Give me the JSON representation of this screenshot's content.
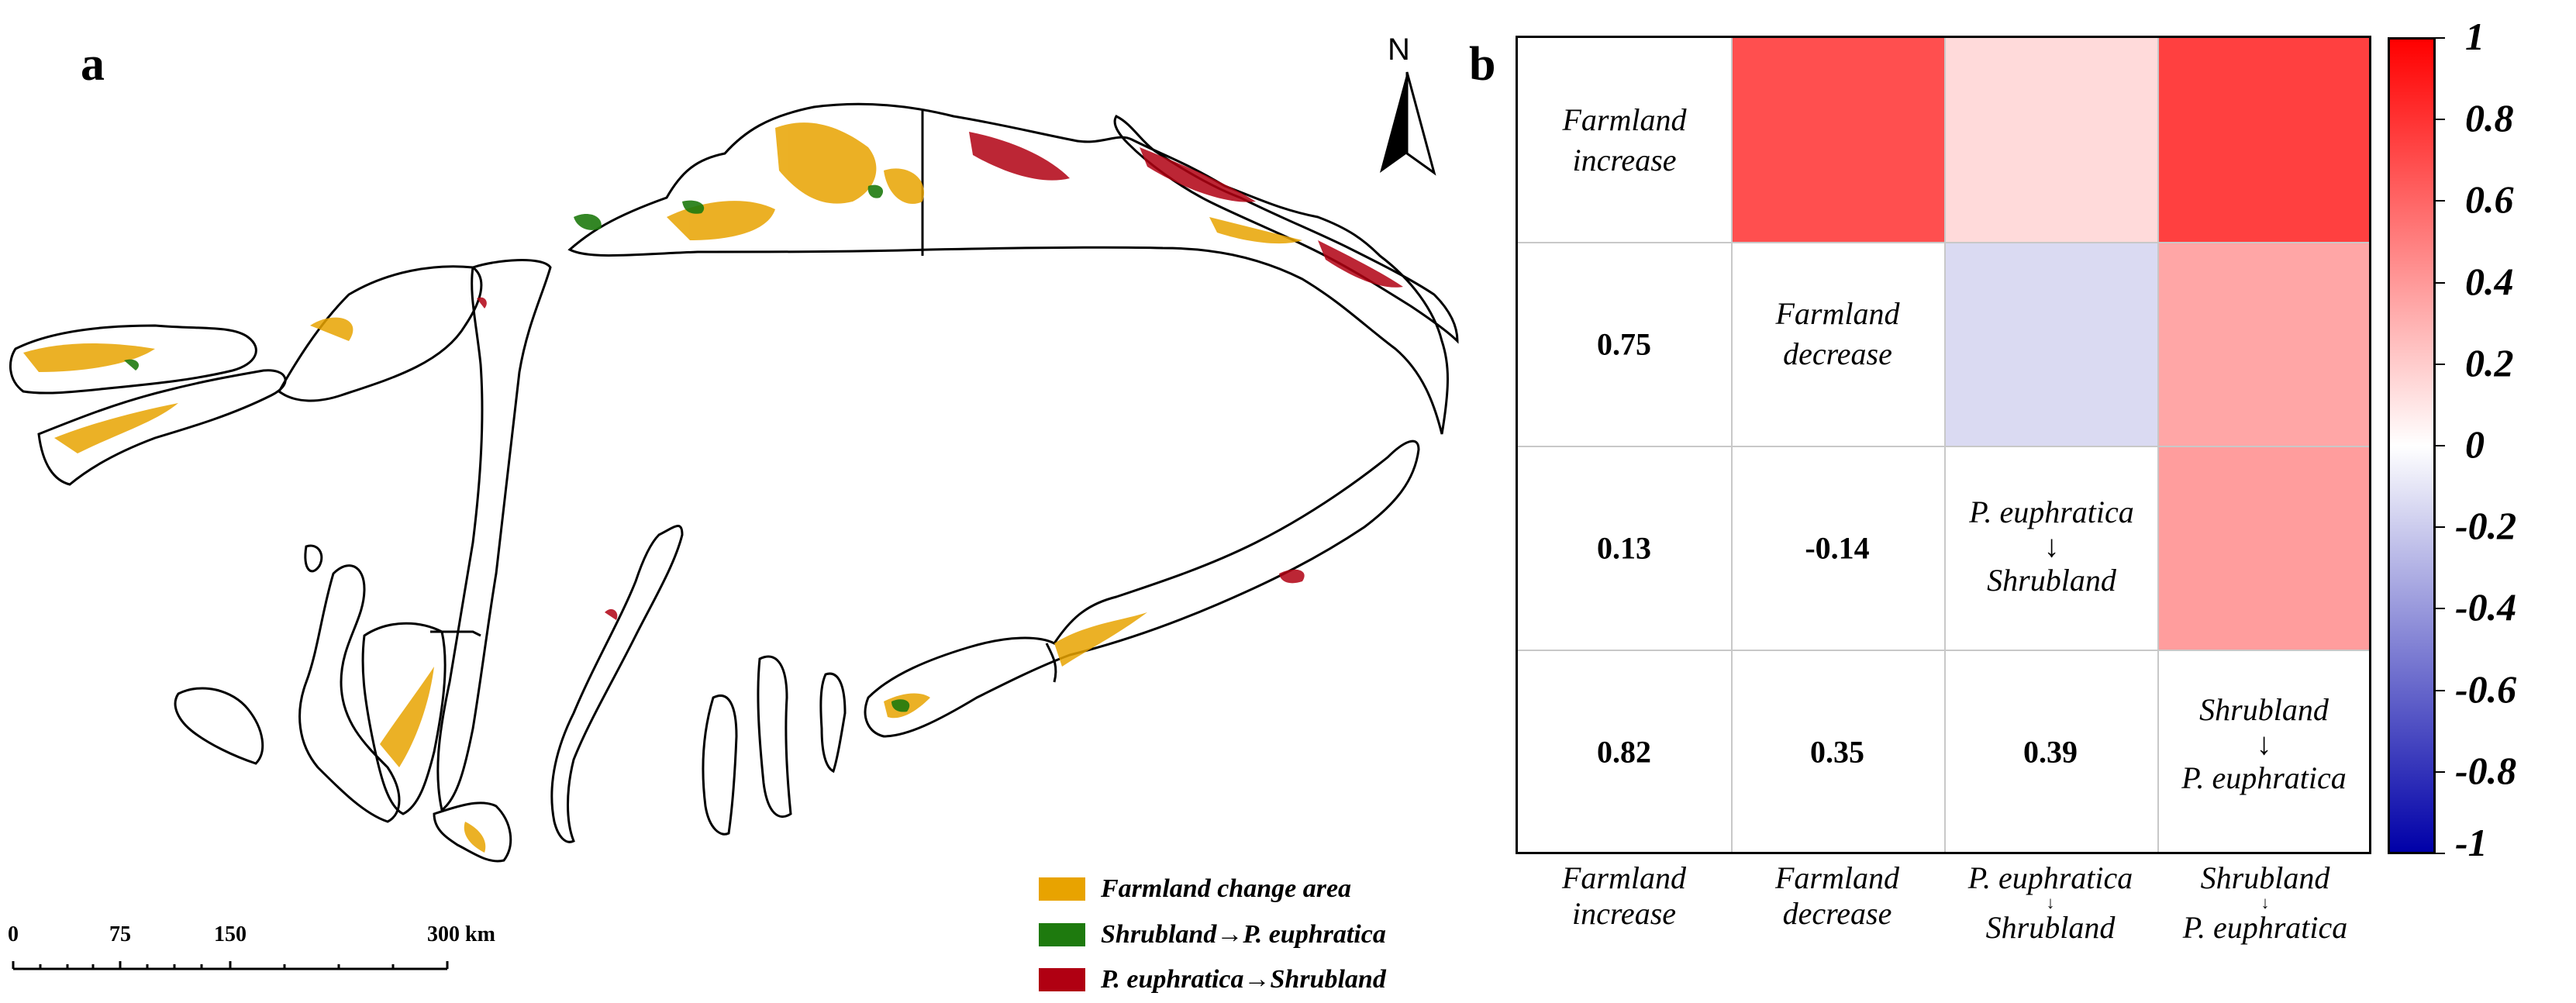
{
  "panel_a": {
    "label": "a",
    "north_label": "N",
    "legend": [
      {
        "label": "Farmland change area",
        "color": "#e8a300"
      },
      {
        "label": "Shrubland→P. euphratica",
        "color": "#1e7a0e"
      },
      {
        "label": "P. euphratica→Shrubland",
        "color": "#b00012"
      }
    ],
    "scale_bar": {
      "ticks": [
        "0",
        "75",
        "150",
        "300 km"
      ]
    }
  },
  "panel_b": {
    "label": "b",
    "variables": [
      "Farmland increase",
      "Farmland decrease",
      "P. euphratica → Shrubland",
      "Shrubland → P. euphratica"
    ],
    "diagonal_labels": [
      {
        "line1": "Farmland",
        "line2": "increase"
      },
      {
        "line1": "Farmland",
        "line2": "decrease"
      },
      {
        "line1": "P. euphratica",
        "arrow": "↓",
        "line2": "Shrubland"
      },
      {
        "line1": "Shrubland",
        "arrow": "↓",
        "line2": "P. euphratica"
      }
    ],
    "lower_values": [
      {
        "row": 1,
        "col": 0,
        "text": "0.75"
      },
      {
        "row": 2,
        "col": 0,
        "text": "0.13"
      },
      {
        "row": 2,
        "col": 1,
        "text": "-0.14"
      },
      {
        "row": 3,
        "col": 0,
        "text": "0.82"
      },
      {
        "row": 3,
        "col": 1,
        "text": "0.35"
      },
      {
        "row": 3,
        "col": 2,
        "text": "0.39"
      }
    ],
    "upper_cells": [
      {
        "row": 0,
        "col": 1,
        "value": 0.75
      },
      {
        "row": 0,
        "col": 2,
        "value": 0.13
      },
      {
        "row": 0,
        "col": 3,
        "value": 0.82
      },
      {
        "row": 1,
        "col": 2,
        "value": -0.14
      },
      {
        "row": 1,
        "col": 3,
        "value": 0.35
      },
      {
        "row": 2,
        "col": 3,
        "value": 0.39
      }
    ],
    "x_labels": [
      {
        "line1": "Farmland",
        "line2": "increase"
      },
      {
        "line1": "Farmland",
        "line2": "decrease"
      },
      {
        "line1": "P. euphratica",
        "arrow": "↓",
        "line2": "Shrubland"
      },
      {
        "line1": "Shrubland",
        "arrow": "↓",
        "line2": "P. euphratica"
      }
    ],
    "colorbar": {
      "ticks": [
        "1",
        "0.8",
        "0.6",
        "0.4",
        "0.2",
        "0",
        "-0.2",
        "-0.4",
        "-0.6",
        "-0.8",
        "-1"
      ],
      "colors": {
        "negative": "#0000a8",
        "zero": "#ffffff",
        "positive": "#ff0000"
      }
    }
  }
}
